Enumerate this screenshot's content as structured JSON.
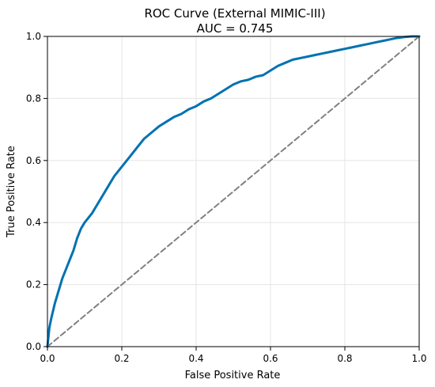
{
  "chart_data": {
    "type": "line",
    "title": "ROC Curve (External MIMIC-III)",
    "subtitle": "AUC = 0.745",
    "xlabel": "False Positive Rate",
    "ylabel": "True Positive Rate",
    "xlim": [
      0.0,
      1.0
    ],
    "ylim": [
      0.0,
      1.0
    ],
    "xticks": [
      "0.0",
      "0.2",
      "0.4",
      "0.6",
      "0.8",
      "1.0"
    ],
    "yticks": [
      "0.0",
      "0.2",
      "0.4",
      "0.6",
      "0.8",
      "1.0"
    ],
    "grid": true,
    "legend": "none",
    "series": [
      {
        "color": "#0072b2",
        "style": "solid",
        "x": [
          0.0,
          0.005,
          0.01,
          0.02,
          0.03,
          0.04,
          0.05,
          0.06,
          0.07,
          0.08,
          0.09,
          0.1,
          0.12,
          0.14,
          0.16,
          0.18,
          0.2,
          0.22,
          0.24,
          0.26,
          0.28,
          0.3,
          0.32,
          0.34,
          0.36,
          0.38,
          0.4,
          0.42,
          0.44,
          0.46,
          0.48,
          0.5,
          0.52,
          0.54,
          0.56,
          0.58,
          0.6,
          0.62,
          0.64,
          0.66,
          0.68,
          0.7,
          0.72,
          0.74,
          0.76,
          0.78,
          0.8,
          0.82,
          0.84,
          0.86,
          0.88,
          0.9,
          0.92,
          0.94,
          0.96,
          0.98,
          1.0
        ],
        "y": [
          0.0,
          0.06,
          0.09,
          0.14,
          0.18,
          0.22,
          0.25,
          0.28,
          0.31,
          0.35,
          0.38,
          0.4,
          0.43,
          0.47,
          0.51,
          0.55,
          0.58,
          0.61,
          0.64,
          0.67,
          0.69,
          0.71,
          0.725,
          0.74,
          0.75,
          0.765,
          0.775,
          0.79,
          0.8,
          0.815,
          0.83,
          0.845,
          0.855,
          0.86,
          0.87,
          0.875,
          0.89,
          0.905,
          0.915,
          0.925,
          0.93,
          0.935,
          0.94,
          0.945,
          0.95,
          0.955,
          0.96,
          0.965,
          0.97,
          0.975,
          0.98,
          0.985,
          0.99,
          0.995,
          0.998,
          1.0,
          1.0
        ]
      },
      {
        "color": "#808080",
        "style": "dashed",
        "x": [
          0.0,
          1.0
        ],
        "y": [
          0.0,
          1.0
        ]
      }
    ]
  }
}
